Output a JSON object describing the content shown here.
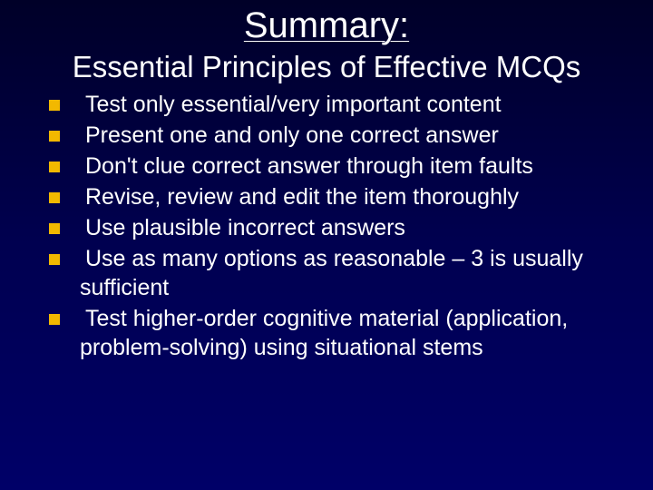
{
  "slide": {
    "title": "Summary:",
    "subtitle": "Essential Principles of Effective MCQs",
    "background_gradient": [
      "#000028",
      "#000050",
      "#000068"
    ],
    "title_color": "#ffffff",
    "title_fontsize": 40,
    "subtitle_color": "#ffffff",
    "subtitle_fontsize": 33,
    "body_text_color": "#ffffff",
    "body_fontsize": 25,
    "bullet_color": "#f2b800",
    "bullet_size": 12,
    "bullets": [
      "Test only essential/very important content",
      "Present one and only one correct answer",
      "Don't clue correct answer through item faults",
      "Revise, review and edit the item thoroughly",
      "Use plausible incorrect answers",
      "Use as many options as reasonable – 3 is usually sufficient",
      "Test higher-order cognitive material (application, problem-solving) using situational stems"
    ]
  }
}
